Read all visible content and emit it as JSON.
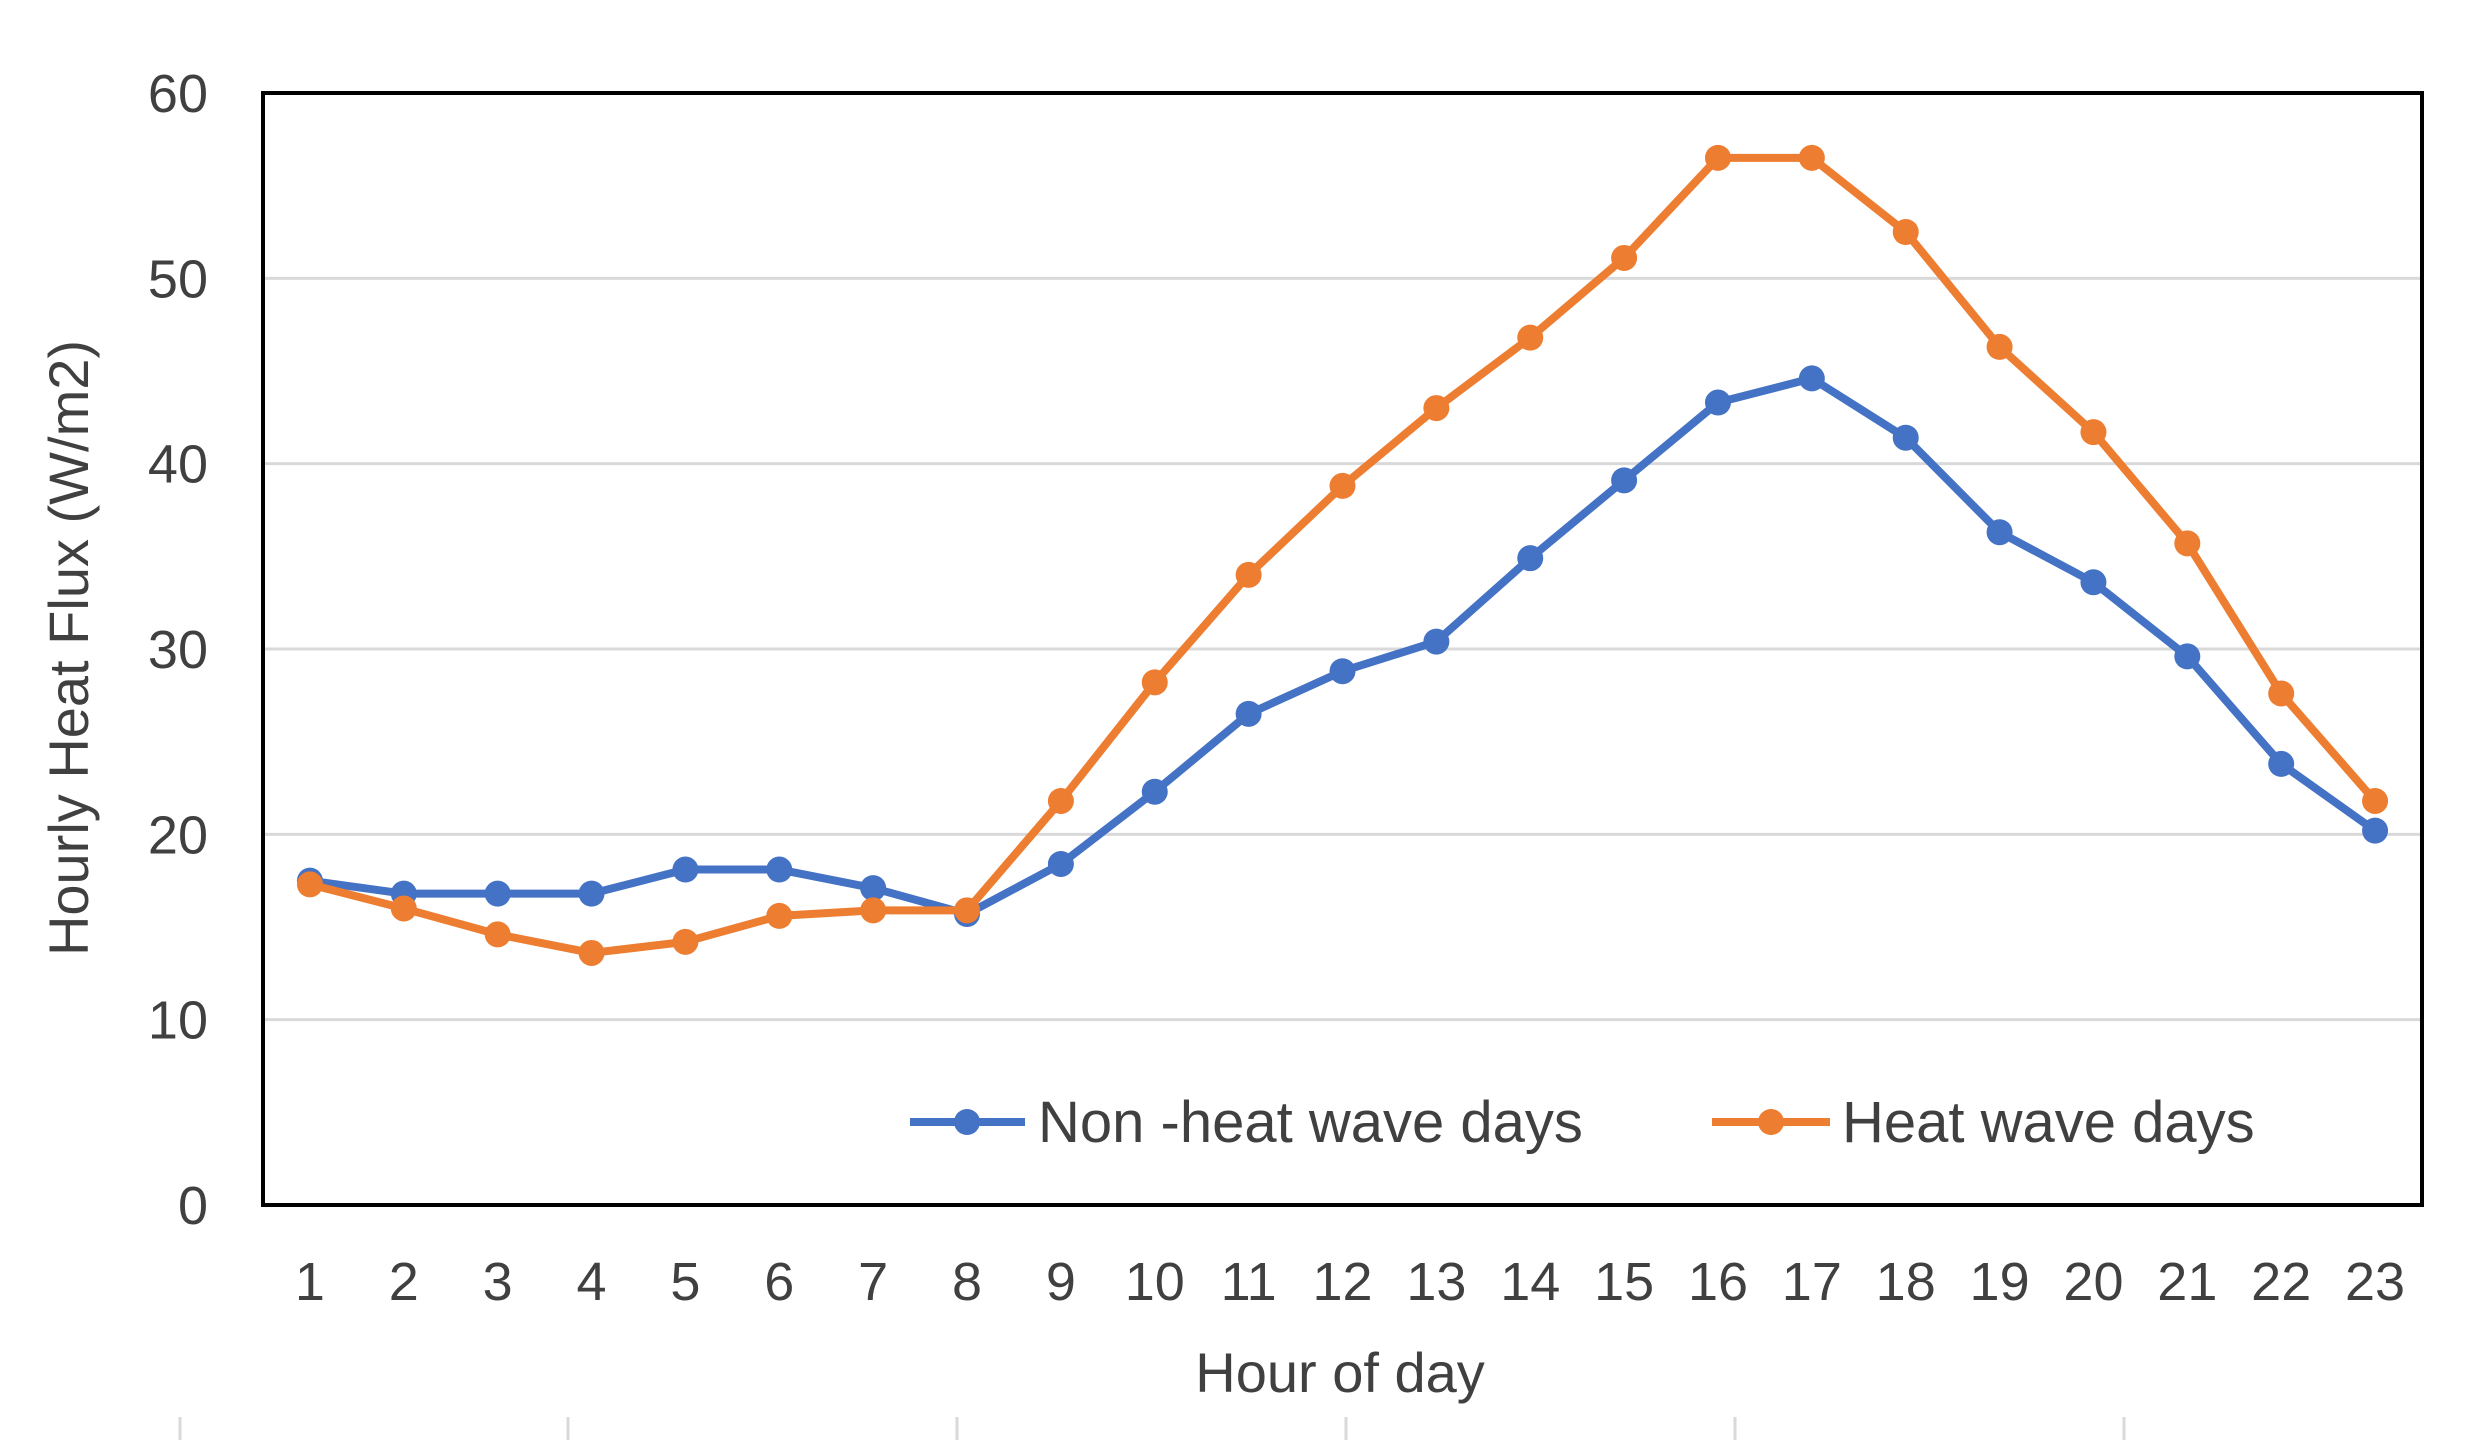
{
  "chart_data": {
    "type": "line",
    "title": "",
    "xlabel": "Hour of day",
    "ylabel": "Hourly Heat Flux (W/m2)",
    "x": [
      1,
      2,
      3,
      4,
      5,
      6,
      7,
      8,
      9,
      10,
      11,
      12,
      13,
      14,
      15,
      16,
      17,
      18,
      19,
      20,
      21,
      22,
      23
    ],
    "ylim": [
      0,
      60
    ],
    "yticks": [
      0,
      10,
      20,
      30,
      40,
      50,
      60
    ],
    "grid": true,
    "legend_position": "bottom-right",
    "series": [
      {
        "name": "Non -heat wave days",
        "color": "#4472c4",
        "values": [
          17.5,
          16.8,
          16.8,
          16.8,
          18.1,
          18.1,
          17.1,
          15.7,
          18.4,
          22.3,
          26.5,
          28.8,
          30.4,
          34.9,
          39.1,
          43.3,
          44.6,
          41.4,
          36.3,
          33.6,
          29.6,
          23.8,
          20.2
        ]
      },
      {
        "name": "Heat wave days",
        "color": "#ed7d31",
        "values": [
          17.3,
          16.0,
          14.6,
          13.6,
          14.2,
          15.6,
          15.9,
          15.9,
          21.8,
          28.2,
          34.0,
          38.8,
          43.0,
          46.8,
          51.1,
          56.5,
          56.5,
          52.5,
          46.3,
          41.7,
          35.7,
          27.6,
          21.8
        ]
      }
    ]
  }
}
